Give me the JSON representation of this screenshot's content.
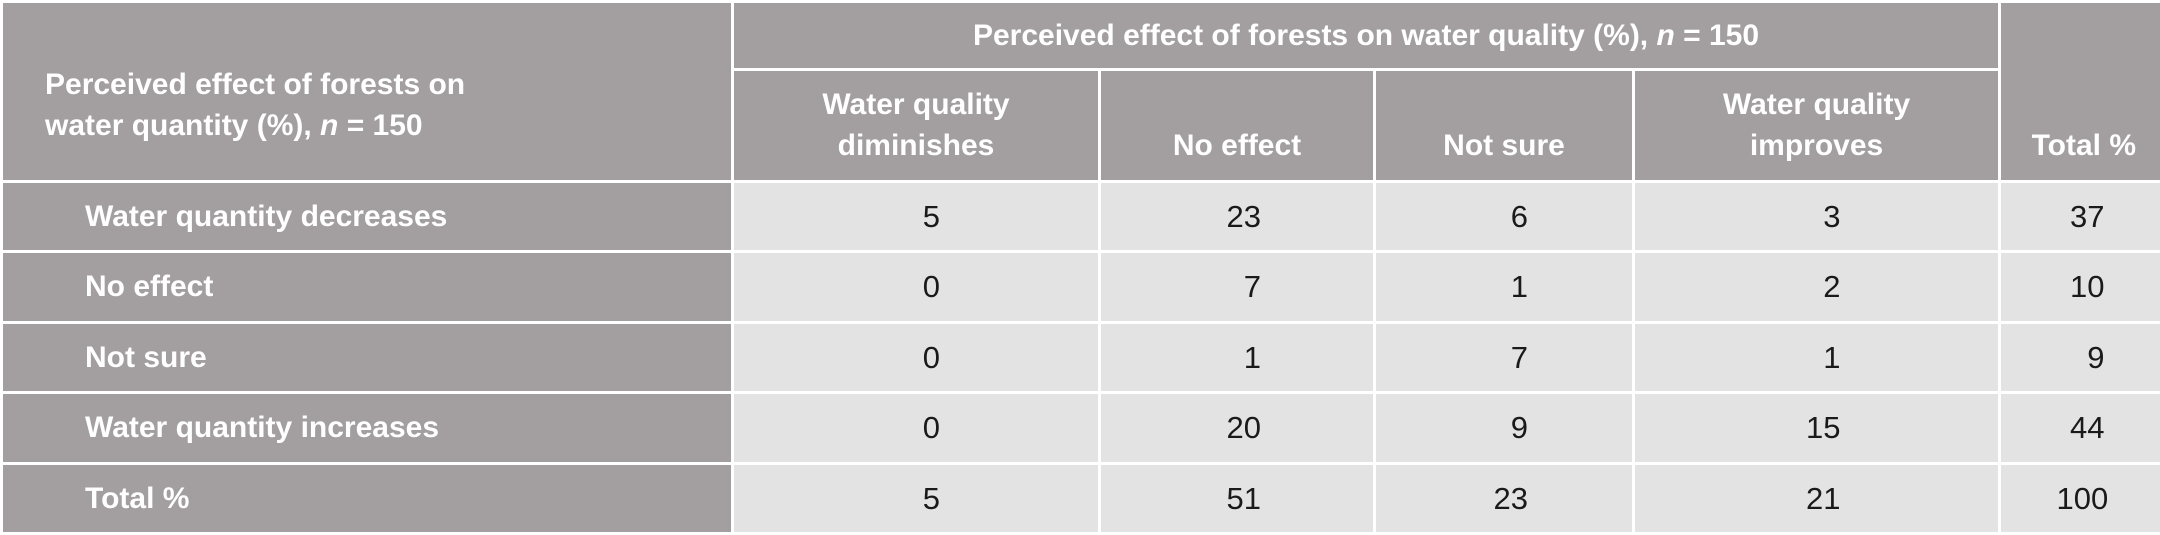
{
  "table": {
    "corner_header": {
      "line1": "Perceived effect of forests on",
      "line2_text": "water quantity (%), ",
      "n_italic": "n",
      "n_rest": " = 150"
    },
    "quality_header": {
      "text": "Perceived effect of forests on water quality (%), ",
      "n_italic": "n",
      "n_rest": " = 150"
    },
    "columns": [
      {
        "line1": "Water quality",
        "line2": "diminishes"
      },
      {
        "line1": "",
        "line2": "No effect"
      },
      {
        "line1": "",
        "line2": "Not sure"
      },
      {
        "line1": "Water quality",
        "line2": "improves"
      }
    ],
    "total_header": "Total %",
    "rows": [
      {
        "label": "Water quantity decreases",
        "values": [
          "5",
          "23",
          "6",
          "3"
        ],
        "total": "37"
      },
      {
        "label": "No effect",
        "values": [
          "0",
          "7",
          "1",
          "2"
        ],
        "total": "10"
      },
      {
        "label": "Not sure",
        "values": [
          "0",
          "1",
          "7",
          "1"
        ],
        "total": "9"
      },
      {
        "label": "Water quantity increases",
        "values": [
          "0",
          "20",
          "9",
          "15"
        ],
        "total": "44"
      },
      {
        "label": "Total %",
        "values": [
          "5",
          "51",
          "23",
          "21"
        ],
        "total": "100"
      }
    ],
    "colors": {
      "header_bg": "#a39e9f",
      "cell_bg": "#e3e3e3",
      "border": "#ffffff",
      "header_text": "#ffffff",
      "cell_text": "#1a1a1a"
    }
  }
}
